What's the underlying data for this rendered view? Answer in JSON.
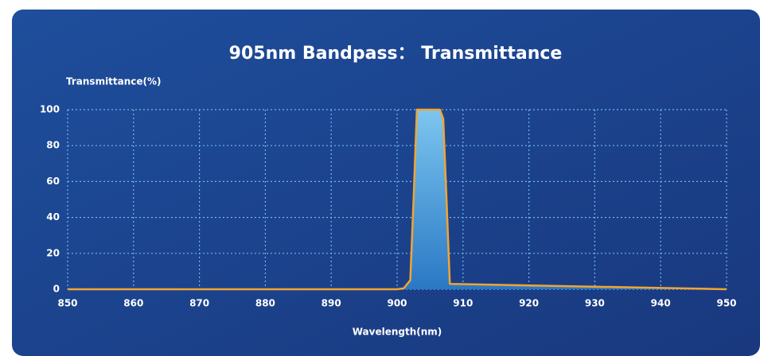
{
  "chart_data": {
    "type": "line",
    "title": "905nm Bandpass： Transmittance",
    "y_label": "Transmittance(%)",
    "x_label": "Wavelength(nm)",
    "x": [
      850,
      900,
      901,
      902,
      902.5,
      903,
      906.5,
      907,
      907.5,
      908,
      950
    ],
    "series": [
      {
        "color": "#f2a531",
        "values": [
          0,
          0,
          0.5,
          5,
          50,
          100,
          100,
          95,
          50,
          3,
          0
        ]
      }
    ],
    "area": true,
    "xlim": [
      850,
      950
    ],
    "xticks": [
      850,
      860,
      870,
      880,
      890,
      900,
      910,
      920,
      930,
      940,
      950
    ],
    "ylim": [
      0,
      100
    ],
    "yticks": [
      0,
      20,
      40,
      60,
      80,
      100
    ],
    "grid": true
  }
}
